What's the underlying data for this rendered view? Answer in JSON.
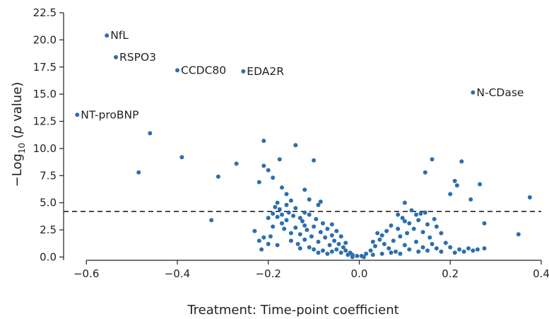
{
  "chart_data": {
    "type": "scatter",
    "xlabel": "Treatment: Time-point coefficient",
    "ylabel_prefix": "−Log",
    "ylabel_sub": "10",
    "ylabel_open": " (",
    "ylabel_p": "p",
    "ylabel_close": " value)",
    "xlim": [
      -0.65,
      0.4
    ],
    "ylim": [
      -0.3,
      22.5
    ],
    "xticks": [
      "−0.6",
      "−0.4",
      "−0.2",
      "0.0",
      "0.2",
      "0.4"
    ],
    "xtick_values": [
      -0.6,
      -0.4,
      -0.2,
      0.0,
      0.2,
      0.4
    ],
    "yticks": [
      "0.0",
      "2.5",
      "5.0",
      "7.5",
      "10.0",
      "12.5",
      "15.0",
      "17.5",
      "20.0",
      "22.5"
    ],
    "ytick_values": [
      0.0,
      2.5,
      5.0,
      7.5,
      10.0,
      12.5,
      15.0,
      17.5,
      20.0,
      22.5
    ],
    "threshold_y": 4.2,
    "color": "#2b6fad",
    "grid": false,
    "labeled_points": [
      {
        "label": "NfL",
        "x": -0.555,
        "y": 20.4
      },
      {
        "label": "RSPO3",
        "x": -0.535,
        "y": 18.4
      },
      {
        "label": "CCDC80",
        "x": -0.4,
        "y": 17.2
      },
      {
        "label": "EDA2R",
        "x": -0.255,
        "y": 17.1
      },
      {
        "label": "N-CDase",
        "x": 0.25,
        "y": 15.15
      },
      {
        "label": "NT-proBNP",
        "x": -0.62,
        "y": 13.1
      }
    ],
    "points": [
      [
        -0.46,
        11.4
      ],
      [
        -0.39,
        9.2
      ],
      [
        -0.485,
        7.8
      ],
      [
        -0.31,
        7.4
      ],
      [
        -0.27,
        8.6
      ],
      [
        -0.325,
        3.4
      ],
      [
        -0.21,
        10.7
      ],
      [
        -0.14,
        10.3
      ],
      [
        -0.175,
        9.0
      ],
      [
        -0.21,
        8.4
      ],
      [
        -0.2,
        8.0
      ],
      [
        -0.22,
        6.9
      ],
      [
        -0.19,
        7.3
      ],
      [
        -0.17,
        6.4
      ],
      [
        -0.16,
        5.8
      ],
      [
        -0.12,
        6.2
      ],
      [
        -0.1,
        8.9
      ],
      [
        -0.15,
        5.2
      ],
      [
        -0.18,
        5.0
      ],
      [
        -0.11,
        5.3
      ],
      [
        -0.23,
        2.4
      ],
      [
        -0.22,
        1.5
      ],
      [
        -0.215,
        0.7
      ],
      [
        -0.2,
        3.6
      ],
      [
        -0.19,
        2.8
      ],
      [
        -0.085,
        5.1
      ],
      [
        -0.13,
        3.6
      ],
      [
        -0.09,
        4.8
      ],
      [
        -0.17,
        3.1
      ],
      [
        -0.12,
        2.9
      ],
      [
        0.16,
        9.0
      ],
      [
        0.225,
        8.8
      ],
      [
        0.145,
        7.8
      ],
      [
        0.21,
        7.0
      ],
      [
        0.215,
        6.6
      ],
      [
        0.265,
        6.7
      ],
      [
        0.245,
        5.3
      ],
      [
        0.2,
        5.8
      ],
      [
        0.375,
        5.5
      ],
      [
        0.275,
        3.1
      ],
      [
        0.35,
        2.1
      ],
      [
        0.275,
        0.8
      ],
      [
        0.1,
        5.0
      ],
      [
        0.115,
        4.3
      ],
      [
        0.135,
        4.0
      ],
      [
        0.085,
        3.9
      ],
      [
        0.1,
        3.3
      ],
      [
        0.07,
        2.9
      ],
      [
        0.06,
        2.4
      ],
      [
        0.17,
        2.8
      ],
      [
        0.19,
        1.3
      ],
      [
        0.155,
        1.8
      ],
      [
        0.18,
        2.2
      ],
      [
        0.12,
        2.6
      ],
      [
        0.09,
        1.9
      ],
      [
        0.035,
        1.0
      ],
      [
        0.015,
        0.3
      ],
      [
        0.025,
        0.6
      ],
      [
        0.045,
        1.6
      ],
      [
        0.055,
        1.2
      ],
      [
        0.065,
        0.8
      ],
      [
        0.075,
        1.5
      ],
      [
        0.08,
        0.5
      ],
      [
        0.1,
        1.1
      ],
      [
        0.11,
        0.7
      ],
      [
        0.125,
        1.4
      ],
      [
        0.14,
        0.9
      ],
      [
        0.15,
        0.6
      ],
      [
        0.16,
        1.2
      ],
      [
        0.17,
        0.8
      ],
      [
        0.2,
        0.9
      ],
      [
        0.22,
        0.7
      ],
      [
        0.24,
        0.8
      ],
      [
        0.26,
        0.7
      ],
      [
        0.005,
        0.1
      ],
      [
        -0.005,
        0.1
      ],
      [
        -0.015,
        0.2
      ],
      [
        -0.02,
        0.4
      ],
      [
        -0.03,
        0.6
      ],
      [
        -0.035,
        0.9
      ],
      [
        -0.045,
        1.2
      ],
      [
        -0.05,
        0.7
      ],
      [
        -0.055,
        1.5
      ],
      [
        -0.06,
        2.0
      ],
      [
        -0.065,
        1.1
      ],
      [
        -0.07,
        2.6
      ],
      [
        -0.075,
        1.8
      ],
      [
        -0.08,
        3.1
      ],
      [
        -0.085,
        2.3
      ],
      [
        -0.09,
        1.4
      ],
      [
        -0.095,
        3.5
      ],
      [
        -0.1,
        2.8
      ],
      [
        -0.105,
        1.9
      ],
      [
        -0.11,
        3.9
      ],
      [
        -0.115,
        2.5
      ],
      [
        -0.12,
        1.6
      ],
      [
        -0.125,
        3.3
      ],
      [
        -0.13,
        2.1
      ],
      [
        -0.135,
        1.2
      ],
      [
        -0.14,
        2.7
      ],
      [
        -0.145,
        3.8
      ],
      [
        -0.15,
        2.2
      ],
      [
        -0.155,
        4.1
      ],
      [
        -0.16,
        3.4
      ],
      [
        -0.165,
        2.6
      ],
      [
        -0.175,
        4.4
      ],
      [
        -0.18,
        3.7
      ],
      [
        -0.185,
        4.6
      ],
      [
        -0.195,
        1.9
      ],
      [
        -0.2,
        1.2
      ],
      [
        -0.04,
        0.4
      ],
      [
        -0.06,
        0.5
      ],
      [
        -0.08,
        0.6
      ],
      [
        -0.1,
        0.7
      ],
      [
        -0.07,
        0.3
      ],
      [
        -0.025,
        0.2
      ],
      [
        -0.09,
        0.4
      ],
      [
        -0.11,
        0.9
      ],
      [
        -0.13,
        0.8
      ],
      [
        -0.015,
        0.0
      ],
      [
        0.01,
        0.0
      ],
      [
        0.03,
        0.2
      ],
      [
        0.05,
        0.3
      ],
      [
        0.07,
        0.4
      ],
      [
        0.09,
        0.3
      ],
      [
        0.13,
        0.5
      ],
      [
        0.18,
        0.5
      ],
      [
        0.21,
        0.4
      ],
      [
        0.23,
        0.5
      ],
      [
        0.25,
        0.6
      ],
      [
        0.05,
        2.0
      ],
      [
        0.04,
        2.2
      ],
      [
        0.03,
        1.4
      ],
      [
        0.085,
        2.6
      ],
      [
        0.095,
        3.6
      ],
      [
        0.105,
        2.2
      ],
      [
        0.13,
        3.4
      ],
      [
        0.14,
        2.3
      ],
      [
        0.15,
        3.0
      ],
      [
        0.165,
        3.5
      ],
      [
        0.125,
        3.9
      ],
      [
        0.145,
        4.1
      ],
      [
        0.11,
        3.1
      ],
      [
        -0.06,
        3.0
      ],
      [
        -0.05,
        2.4
      ],
      [
        -0.04,
        1.9
      ],
      [
        -0.03,
        1.3
      ],
      [
        -0.12,
        4.1
      ],
      [
        -0.14,
        4.5
      ],
      [
        -0.16,
        4.8
      ],
      [
        -0.17,
        3.9
      ],
      [
        -0.19,
        4.0
      ],
      [
        -0.15,
        1.5
      ],
      [
        -0.18,
        1.1
      ],
      [
        -0.21,
        1.8
      ]
    ]
  }
}
